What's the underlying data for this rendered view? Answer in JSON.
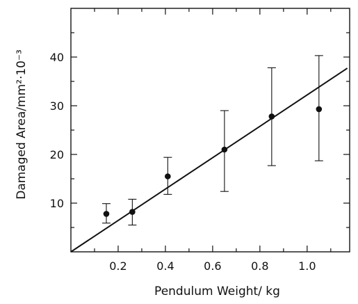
{
  "chart_data": {
    "type": "scatter",
    "xlabel": "Pendulum  Weight/ kg",
    "ylabel": "Damaged Area/mm²·10⁻³",
    "xlim": [
      0,
      1.18
    ],
    "ylim": [
      0,
      50
    ],
    "x_ticks": [
      {
        "value": 0.2,
        "label": "0.2"
      },
      {
        "value": 0.4,
        "label": "0.4"
      },
      {
        "value": 0.6,
        "label": "0.6"
      },
      {
        "value": 0.8,
        "label": "0.8"
      },
      {
        "value": 1.0,
        "label": "1.0"
      }
    ],
    "y_ticks": [
      {
        "value": 10,
        "label": "10"
      },
      {
        "value": 20,
        "label": "20"
      },
      {
        "value": 30,
        "label": "30"
      },
      {
        "value": 40,
        "label": "40"
      }
    ],
    "points": [
      {
        "x": 0.15,
        "y": 7.8,
        "err_low": 5.9,
        "err_high": 9.9
      },
      {
        "x": 0.26,
        "y": 8.2,
        "err_low": 5.5,
        "err_high": 10.8
      },
      {
        "x": 0.41,
        "y": 15.5,
        "err_low": 11.8,
        "err_high": 19.4
      },
      {
        "x": 0.65,
        "y": 21.0,
        "err_low": 12.4,
        "err_high": 29.0
      },
      {
        "x": 0.85,
        "y": 27.8,
        "err_low": 17.7,
        "err_high": 37.8
      },
      {
        "x": 1.05,
        "y": 29.3,
        "err_low": 18.7,
        "err_high": 40.3
      }
    ],
    "fit_line": {
      "x": [
        0.0,
        1.17
      ],
      "y": [
        0.0,
        37.7
      ]
    },
    "grid": false,
    "legend": "none",
    "colors": {
      "marks": "#111111",
      "axes": "#111111"
    }
  }
}
